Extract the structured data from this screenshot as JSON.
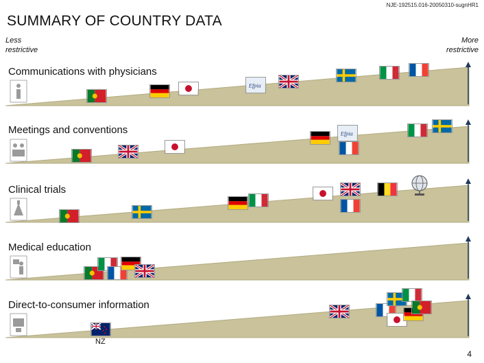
{
  "header": {
    "doc_id": "NJE-192515.016-20050310-sugnHR1",
    "title": "SUMMARY OF COUNTRY DATA",
    "less_label": "Less restrictive",
    "more_label": "More restrictive"
  },
  "colors": {
    "wedge_fill": "#c9c29a",
    "wedge_edge": "#b2ab82",
    "arrow": "#1f3a5a"
  },
  "bands": [
    {
      "label": "Communications with physicians",
      "icon": "physician-icon",
      "countries": [
        "Portugal",
        "Germany",
        "Japan",
        "Efpia",
        "United Kingdom",
        "Sweden",
        "Italy",
        "France"
      ]
    },
    {
      "label": "Meetings and conventions",
      "icon": "meeting-icon",
      "countries": [
        "Portugal",
        "United Kingdom",
        "Japan",
        "Germany",
        "Efpia",
        "France",
        "Italy",
        "Sweden"
      ]
    },
    {
      "label": "Clinical trials",
      "icon": "clinical-trials-icon",
      "countries": [
        "Portugal",
        "Sweden",
        "Germany",
        "Italy",
        "Japan",
        "United Kingdom",
        "France",
        "Belgium",
        "Global"
      ]
    },
    {
      "label": "Medical education",
      "icon": "medical-education-icon",
      "countries": [
        "Portugal",
        "Italy",
        "France",
        "Germany",
        "United Kingdom"
      ]
    },
    {
      "label": "Direct-to-consumer information",
      "icon": "consumer-info-icon",
      "countries": [
        "New Zealand",
        "United Kingdom",
        "France",
        "Sweden",
        "Japan",
        "Italy",
        "Germany",
        "Portugal"
      ],
      "nz_label": "NZ"
    }
  ],
  "footer": {
    "page_number": "4"
  }
}
